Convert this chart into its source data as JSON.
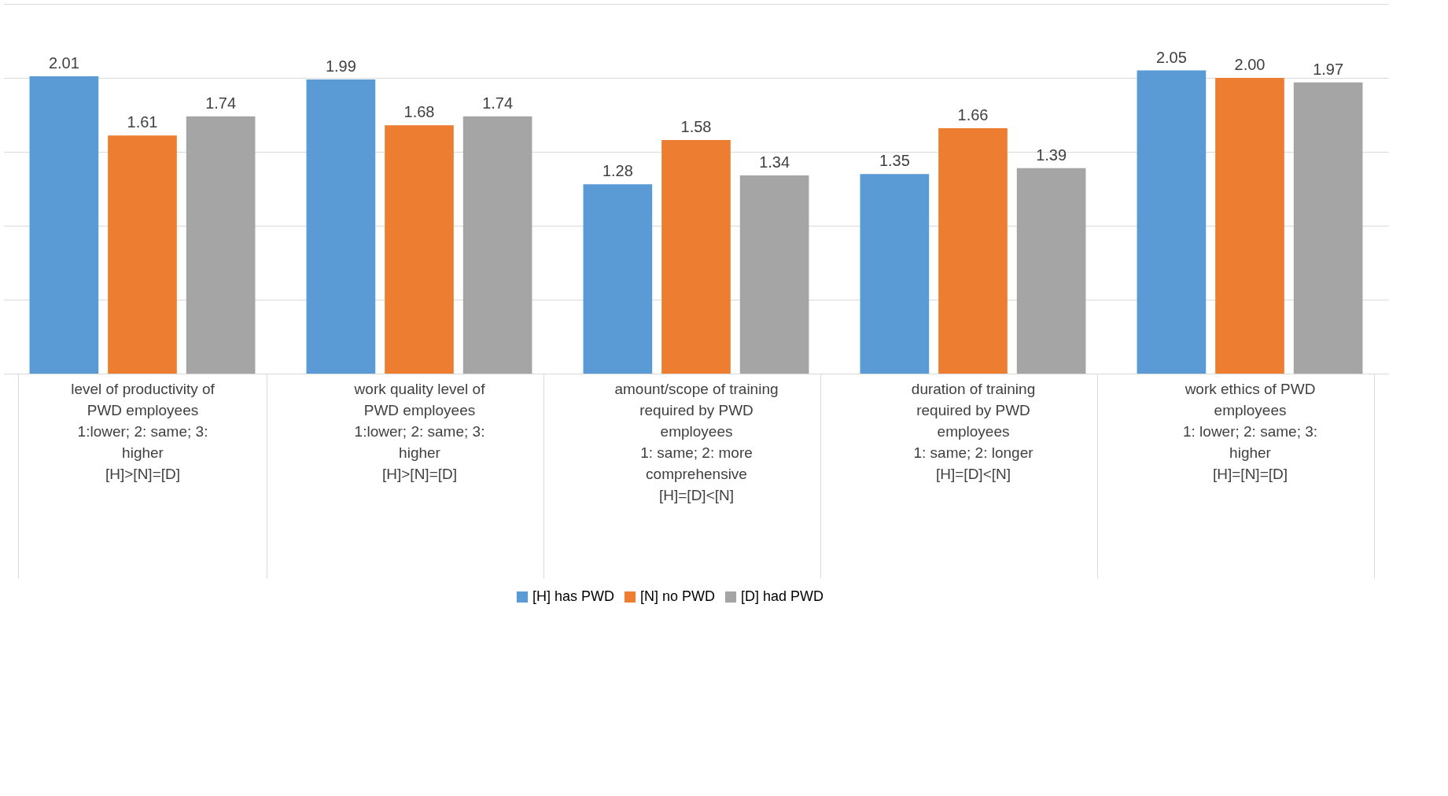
{
  "chart_data": {
    "type": "bar",
    "categories": [
      "level of productivity of PWD employees\n\n1:lower; 2: same; 3: higher\n\n[H]>[N]=[D]",
      "work quality level of PWD employees\n\n1:lower; 2: same; 3: higher\n\n[H]>[N]=[D]",
      "amount/scope of training required by PWD employees\n\n1: same; 2: more comprehensive\n\n[H]=[D]<[N]",
      "duration of training required by PWD employees\n\n1: same; 2: longer\n\n[H]=[D]<[N]",
      "work ethics of PWD employees\n\n1: lower; 2: same; 3: higher\n\n[H]=[N]=[D]"
    ],
    "series": [
      {
        "name": "[H] has PWD",
        "color": "#5b9bd5",
        "values": [
          2.01,
          1.99,
          1.28,
          1.35,
          2.05
        ],
        "value_labels": [
          "2.01",
          "1.99",
          "1.28",
          "1.35",
          "2.05"
        ]
      },
      {
        "name": "[N] no PWD",
        "color": "#ed7d31",
        "values": [
          1.61,
          1.68,
          1.58,
          1.66,
          2.0
        ],
        "value_labels": [
          "1.61",
          "1.68",
          "1.58",
          "1.66",
          "2.00"
        ]
      },
      {
        "name": "[D] had PWD",
        "color": "#a5a5a5",
        "values": [
          1.74,
          1.74,
          1.34,
          1.39,
          1.97
        ],
        "value_labels": [
          "1.74",
          "1.74",
          "1.34",
          "1.39",
          "1.97"
        ]
      }
    ],
    "ylim": [
      0,
      2.5
    ],
    "yticks": [
      {
        "value": 0,
        "label": null
      },
      {
        "value": 0.5,
        "label": null
      },
      {
        "value": 1,
        "label": null
      },
      {
        "value": 1.5,
        "label": null
      },
      {
        "value": 2,
        "label": null
      },
      {
        "value": 2.5,
        "label": null
      }
    ],
    "grid": "y",
    "tick_labels": "x",
    "legend": "bottom"
  }
}
